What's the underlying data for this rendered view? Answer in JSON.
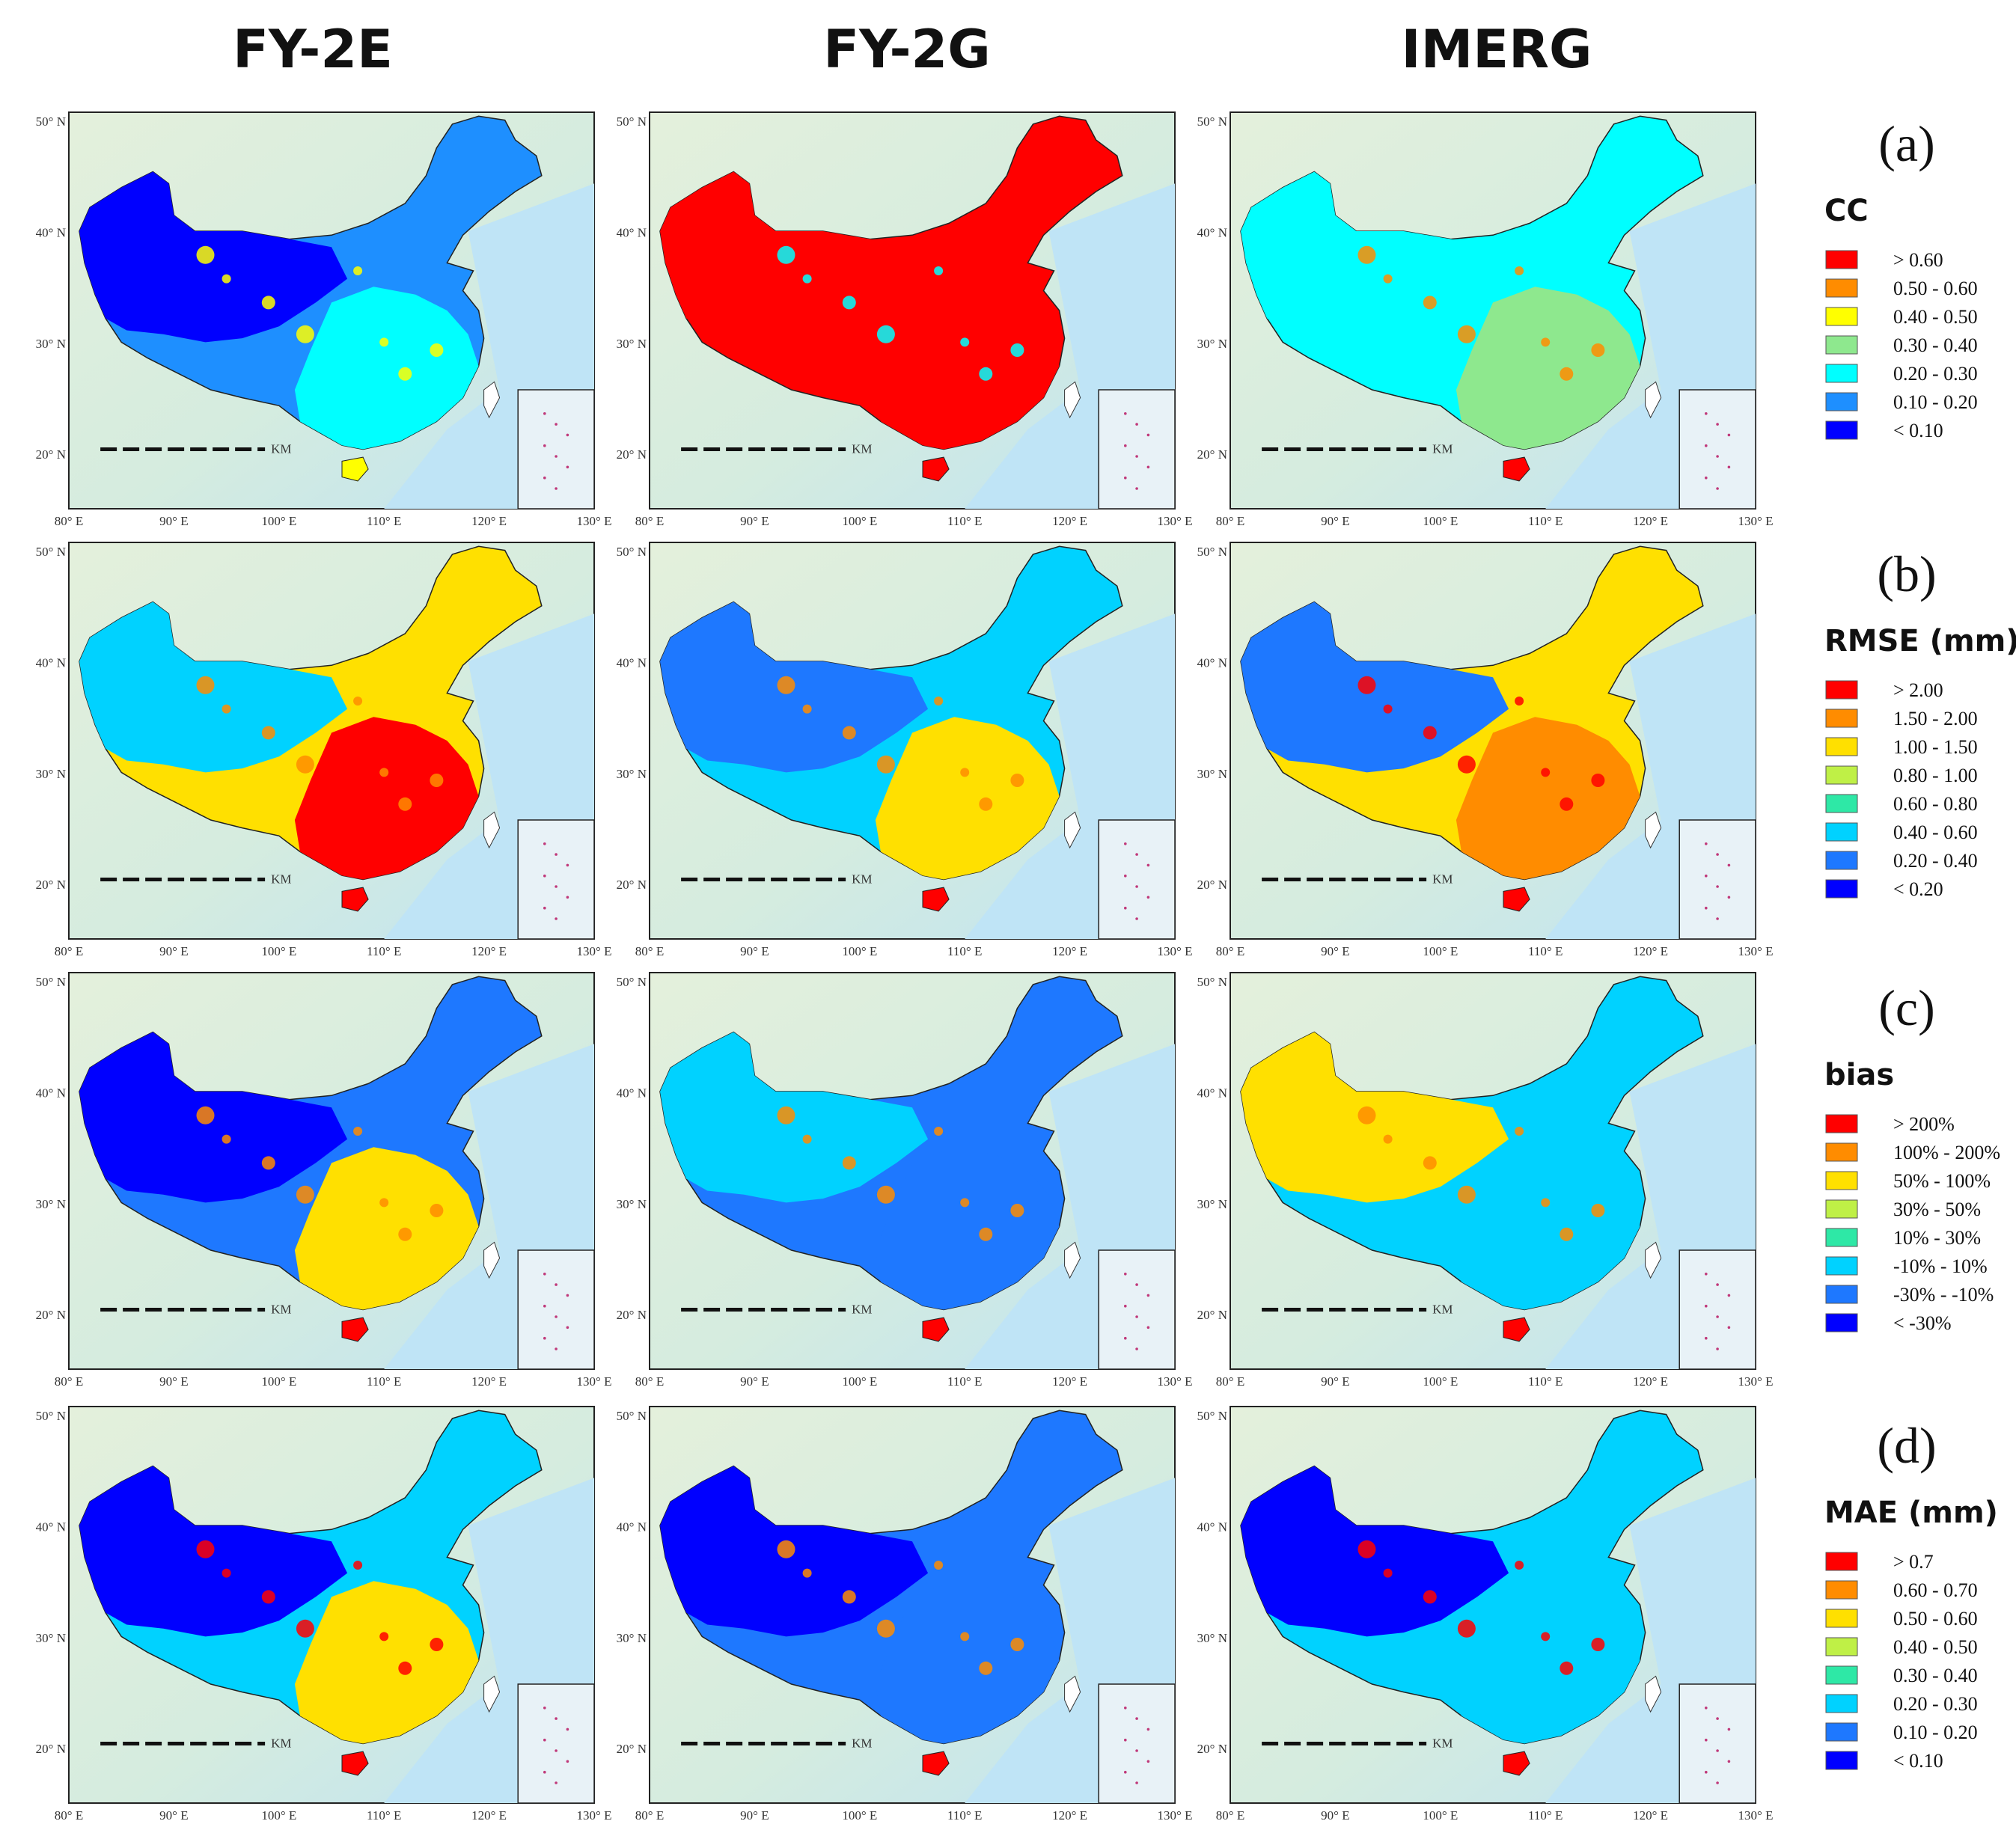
{
  "column_titles": [
    "FY-2E",
    "FY-2G",
    "IMERG"
  ],
  "lon_ticks": [
    "80° E",
    "90° E",
    "100° E",
    "110° E",
    "120° E",
    "130° E"
  ],
  "lat_ticks": [
    "50° N",
    "40° N",
    "30° N",
    "20° N"
  ],
  "scale_unit": "KM",
  "rows": [
    {
      "label": "(a)",
      "metric": "CC",
      "legend": [
        {
          "label": "> 0.60",
          "color": "#ff0000"
        },
        {
          "label": "0.50 - 0.60",
          "color": "#ff8c00"
        },
        {
          "label": "0.40 - 0.50",
          "color": "#ffff00"
        },
        {
          "label": "0.30 - 0.40",
          "color": "#8ee88e"
        },
        {
          "label": "0.20 - 0.30",
          "color": "#00ffff"
        },
        {
          "label": "0.10 - 0.20",
          "color": "#1e8fff"
        },
        {
          "label": "< 0.10",
          "color": "#0000ff"
        }
      ],
      "panels": [
        {
          "product": "FY-2E",
          "base": "#1e8fff",
          "west": "#0000ff",
          "southeast": "#00ffff",
          "spot": "#ffff00"
        },
        {
          "product": "FY-2G",
          "base": "#ff0000",
          "west": "#ff0000",
          "southeast": "#ff0000",
          "spot": "#00ffff"
        },
        {
          "product": "IMERG",
          "base": "#00ffff",
          "west": "#00ffff",
          "southeast": "#8ee88e",
          "spot": "#ff8c00"
        }
      ]
    },
    {
      "label": "(b)",
      "metric": "RMSE (mm)",
      "legend": [
        {
          "label": "> 2.00",
          "color": "#ff0000"
        },
        {
          "label": "1.50 - 2.00",
          "color": "#ff8c00"
        },
        {
          "label": "1.00 - 1.50",
          "color": "#ffe000"
        },
        {
          "label": "0.80 - 1.00",
          "color": "#bff046"
        },
        {
          "label": "0.60 - 0.80",
          "color": "#2ee8a6"
        },
        {
          "label": "0.40 - 0.60",
          "color": "#00d2ff"
        },
        {
          "label": "0.20 - 0.40",
          "color": "#1e78ff"
        },
        {
          "label": "< 0.20",
          "color": "#0000ff"
        }
      ],
      "panels": [
        {
          "product": "FY-2E",
          "base": "#ffe000",
          "west": "#00d2ff",
          "southeast": "#ff0000",
          "spot": "#ff8c00"
        },
        {
          "product": "FY-2G",
          "base": "#00d2ff",
          "west": "#1e78ff",
          "southeast": "#ffe000",
          "spot": "#ff8c00"
        },
        {
          "product": "IMERG",
          "base": "#ffe000",
          "west": "#1e78ff",
          "southeast": "#ff8c00",
          "spot": "#ff0000"
        }
      ]
    },
    {
      "label": "(c)",
      "metric": "bias",
      "legend": [
        {
          "label": "> 200%",
          "color": "#ff0000"
        },
        {
          "label": "100% - 200%",
          "color": "#ff8c00"
        },
        {
          "label": "50% - 100%",
          "color": "#ffe000"
        },
        {
          "label": "30% - 50%",
          "color": "#bff046"
        },
        {
          "label": "10% - 30%",
          "color": "#2ee8a6"
        },
        {
          "label": "-10% - 10%",
          "color": "#00d2ff"
        },
        {
          "label": "-30% - -10%",
          "color": "#1e78ff"
        },
        {
          "label": "< -30%",
          "color": "#0000ff"
        }
      ],
      "panels": [
        {
          "product": "FY-2E",
          "base": "#1e78ff",
          "west": "#0000ff",
          "southeast": "#ffe000",
          "spot": "#ff8c00"
        },
        {
          "product": "FY-2G",
          "base": "#1e78ff",
          "west": "#00d2ff",
          "southeast": "#1e78ff",
          "spot": "#ff8c00"
        },
        {
          "product": "IMERG",
          "base": "#00d2ff",
          "west": "#ffe000",
          "southeast": "#00d2ff",
          "spot": "#ff8c00"
        }
      ]
    },
    {
      "label": "(d)",
      "metric": "MAE (mm)",
      "legend": [
        {
          "label": "> 0.7",
          "color": "#ff0000"
        },
        {
          "label": "0.60 - 0.70",
          "color": "#ff8c00"
        },
        {
          "label": "0.50 - 0.60",
          "color": "#ffe000"
        },
        {
          "label": "0.40 - 0.50",
          "color": "#bff046"
        },
        {
          "label": "0.30 - 0.40",
          "color": "#2ee8a6"
        },
        {
          "label": "0.20 - 0.30",
          "color": "#00d2ff"
        },
        {
          "label": "0.10 - 0.20",
          "color": "#1e78ff"
        },
        {
          "label": "< 0.10",
          "color": "#0000ff"
        }
      ],
      "panels": [
        {
          "product": "FY-2E",
          "base": "#00d2ff",
          "west": "#0000ff",
          "southeast": "#ffe000",
          "spot": "#ff0000"
        },
        {
          "product": "FY-2G",
          "base": "#1e78ff",
          "west": "#0000ff",
          "southeast": "#1e78ff",
          "spot": "#ff8c00"
        },
        {
          "product": "IMERG",
          "base": "#00d2ff",
          "west": "#0000ff",
          "southeast": "#00d2ff",
          "spot": "#ff0000"
        }
      ]
    }
  ]
}
